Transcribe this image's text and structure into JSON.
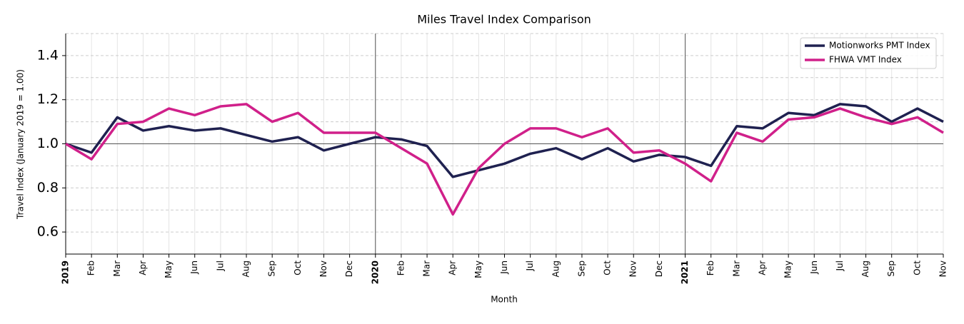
{
  "chart_data": {
    "type": "line",
    "title": "Miles Travel Index Comparison",
    "x_label": "Month",
    "y_label": "Travel Index (January 2019 = 1.00)",
    "categories": [
      "2019",
      "Feb",
      "Mar",
      "Apr",
      "May",
      "Jun",
      "Jul",
      "Aug",
      "Sep",
      "Oct",
      "Nov",
      "Dec",
      "2020",
      "Feb",
      "Mar",
      "Apr",
      "May",
      "Jun",
      "Jul",
      "Aug",
      "Sep",
      "Oct",
      "Nov",
      "Dec",
      "2021",
      "Feb",
      "Mar",
      "Apr",
      "May",
      "Jun",
      "Jul",
      "Aug",
      "Sep",
      "Oct",
      "Nov"
    ],
    "series": [
      {
        "name": "Motionworks PMT Index",
        "color": "#1f2150",
        "values": [
          1.0,
          0.96,
          1.12,
          1.06,
          1.08,
          1.06,
          1.07,
          1.04,
          1.01,
          1.03,
          0.97,
          1.0,
          1.03,
          1.02,
          0.99,
          0.85,
          0.88,
          0.91,
          0.955,
          0.98,
          0.93,
          0.98,
          0.92,
          0.95,
          0.94,
          0.9,
          1.08,
          1.07,
          1.14,
          1.13,
          1.18,
          1.17,
          1.1,
          1.16,
          1.1
        ]
      },
      {
        "name": "FHWA VMT Index",
        "color": "#d0208a",
        "values": [
          1.0,
          0.93,
          1.09,
          1.1,
          1.16,
          1.13,
          1.17,
          1.18,
          1.1,
          1.14,
          1.05,
          1.05,
          1.05,
          0.98,
          0.91,
          0.68,
          0.89,
          1.0,
          1.07,
          1.07,
          1.03,
          1.07,
          0.96,
          0.97,
          0.91,
          0.83,
          1.05,
          1.01,
          1.11,
          1.12,
          1.16,
          1.12,
          1.09,
          1.12,
          1.05
        ]
      }
    ],
    "ylim": [
      0.5,
      1.5
    ],
    "yticks": [
      0.6,
      0.8,
      {
        "value": 1,
        "label": "1.0"
      },
      1.2,
      1.4
    ],
    "reference_line": 1,
    "grid": true,
    "legend": "upper right"
  }
}
